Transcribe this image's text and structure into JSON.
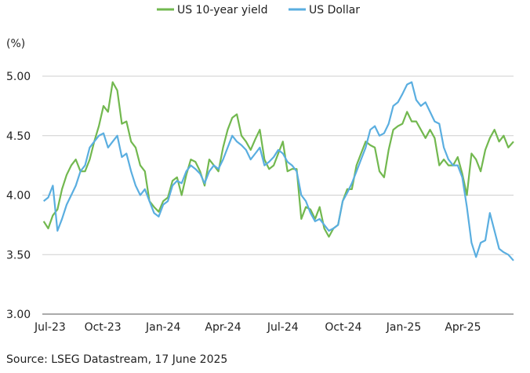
{
  "chart_data": {
    "type": "line",
    "ylabel": "(%)",
    "ylim": [
      3.0,
      5.0
    ],
    "yticks": [
      3.0,
      3.5,
      4.0,
      4.5,
      5.0
    ],
    "ytick_labels": [
      "3.00",
      "3.50",
      "4.00",
      "4.50",
      "5.00"
    ],
    "xlim": [
      "2023-07-01",
      "2025-06-17"
    ],
    "xticks": [
      "2023-07-01",
      "2023-10-01",
      "2024-01-01",
      "2024-04-01",
      "2024-07-01",
      "2024-10-01",
      "2025-01-01",
      "2025-04-01"
    ],
    "xtick_labels": [
      "Jul-23",
      "Oct-23",
      "Jan-24",
      "Apr-24",
      "Jul-24",
      "Oct-24",
      "Jan-25",
      "Apr-25"
    ],
    "grid": true,
    "legend_position": "top-center",
    "series": [
      {
        "name": "US 10-year yield",
        "color": "#72b84f",
        "points": [
          [
            "2023-07-03",
            3.78
          ],
          [
            "2023-07-10",
            3.72
          ],
          [
            "2023-07-17",
            3.83
          ],
          [
            "2023-07-24",
            3.88
          ],
          [
            "2023-07-31",
            4.05
          ],
          [
            "2023-08-07",
            4.17
          ],
          [
            "2023-08-14",
            4.25
          ],
          [
            "2023-08-21",
            4.3
          ],
          [
            "2023-08-28",
            4.2
          ],
          [
            "2023-09-04",
            4.2
          ],
          [
            "2023-09-11",
            4.3
          ],
          [
            "2023-09-18",
            4.45
          ],
          [
            "2023-09-25",
            4.58
          ],
          [
            "2023-10-02",
            4.75
          ],
          [
            "2023-10-09",
            4.7
          ],
          [
            "2023-10-16",
            4.95
          ],
          [
            "2023-10-23",
            4.88
          ],
          [
            "2023-10-30",
            4.6
          ],
          [
            "2023-11-06",
            4.62
          ],
          [
            "2023-11-13",
            4.45
          ],
          [
            "2023-11-20",
            4.4
          ],
          [
            "2023-11-27",
            4.25
          ],
          [
            "2023-12-04",
            4.2
          ],
          [
            "2023-12-11",
            3.95
          ],
          [
            "2023-12-18",
            3.9
          ],
          [
            "2023-12-25",
            3.86
          ],
          [
            "2024-01-01",
            3.95
          ],
          [
            "2024-01-08",
            3.98
          ],
          [
            "2024-01-15",
            4.12
          ],
          [
            "2024-01-22",
            4.15
          ],
          [
            "2024-01-29",
            4.0
          ],
          [
            "2024-02-05",
            4.17
          ],
          [
            "2024-02-12",
            4.3
          ],
          [
            "2024-02-19",
            4.28
          ],
          [
            "2024-02-26",
            4.2
          ],
          [
            "2024-03-04",
            4.08
          ],
          [
            "2024-03-11",
            4.3
          ],
          [
            "2024-03-18",
            4.25
          ],
          [
            "2024-03-25",
            4.2
          ],
          [
            "2024-04-01",
            4.4
          ],
          [
            "2024-04-08",
            4.55
          ],
          [
            "2024-04-15",
            4.65
          ],
          [
            "2024-04-22",
            4.68
          ],
          [
            "2024-04-29",
            4.5
          ],
          [
            "2024-05-06",
            4.45
          ],
          [
            "2024-05-13",
            4.38
          ],
          [
            "2024-05-20",
            4.47
          ],
          [
            "2024-05-27",
            4.55
          ],
          [
            "2024-06-03",
            4.3
          ],
          [
            "2024-06-10",
            4.22
          ],
          [
            "2024-06-17",
            4.25
          ],
          [
            "2024-06-24",
            4.35
          ],
          [
            "2024-07-01",
            4.45
          ],
          [
            "2024-07-08",
            4.2
          ],
          [
            "2024-07-15",
            4.22
          ],
          [
            "2024-07-22",
            4.22
          ],
          [
            "2024-07-29",
            3.8
          ],
          [
            "2024-08-05",
            3.9
          ],
          [
            "2024-08-12",
            3.88
          ],
          [
            "2024-08-19",
            3.8
          ],
          [
            "2024-08-26",
            3.9
          ],
          [
            "2024-09-02",
            3.72
          ],
          [
            "2024-09-09",
            3.65
          ],
          [
            "2024-09-16",
            3.72
          ],
          [
            "2024-09-23",
            3.75
          ],
          [
            "2024-09-30",
            3.95
          ],
          [
            "2024-10-07",
            4.05
          ],
          [
            "2024-10-14",
            4.05
          ],
          [
            "2024-10-21",
            4.25
          ],
          [
            "2024-10-28",
            4.35
          ],
          [
            "2024-11-04",
            4.45
          ],
          [
            "2024-11-11",
            4.42
          ],
          [
            "2024-11-18",
            4.4
          ],
          [
            "2024-11-25",
            4.2
          ],
          [
            "2024-12-02",
            4.15
          ],
          [
            "2024-12-09",
            4.38
          ],
          [
            "2024-12-16",
            4.55
          ],
          [
            "2024-12-23",
            4.58
          ],
          [
            "2024-12-30",
            4.6
          ],
          [
            "2025-01-06",
            4.7
          ],
          [
            "2025-01-13",
            4.62
          ],
          [
            "2025-01-20",
            4.62
          ],
          [
            "2025-01-27",
            4.55
          ],
          [
            "2025-02-03",
            4.48
          ],
          [
            "2025-02-10",
            4.55
          ],
          [
            "2025-02-17",
            4.48
          ],
          [
            "2025-02-24",
            4.25
          ],
          [
            "2025-03-03",
            4.3
          ],
          [
            "2025-03-10",
            4.25
          ],
          [
            "2025-03-17",
            4.25
          ],
          [
            "2025-03-24",
            4.32
          ],
          [
            "2025-03-31",
            4.18
          ],
          [
            "2025-04-07",
            4.0
          ],
          [
            "2025-04-14",
            4.35
          ],
          [
            "2025-04-21",
            4.3
          ],
          [
            "2025-04-28",
            4.2
          ],
          [
            "2025-05-05",
            4.38
          ],
          [
            "2025-05-12",
            4.48
          ],
          [
            "2025-05-19",
            4.55
          ],
          [
            "2025-05-26",
            4.45
          ],
          [
            "2025-06-02",
            4.5
          ],
          [
            "2025-06-09",
            4.4
          ],
          [
            "2025-06-17",
            4.45
          ]
        ]
      },
      {
        "name": "US Dollar",
        "color": "#5aaee0",
        "points": [
          [
            "2023-07-03",
            3.95
          ],
          [
            "2023-07-10",
            3.98
          ],
          [
            "2023-07-17",
            4.08
          ],
          [
            "2023-07-24",
            3.7
          ],
          [
            "2023-07-31",
            3.8
          ],
          [
            "2023-08-07",
            3.92
          ],
          [
            "2023-08-14",
            4.0
          ],
          [
            "2023-08-21",
            4.08
          ],
          [
            "2023-08-28",
            4.2
          ],
          [
            "2023-09-04",
            4.25
          ],
          [
            "2023-09-11",
            4.4
          ],
          [
            "2023-09-18",
            4.45
          ],
          [
            "2023-09-25",
            4.5
          ],
          [
            "2023-10-02",
            4.52
          ],
          [
            "2023-10-09",
            4.4
          ],
          [
            "2023-10-16",
            4.45
          ],
          [
            "2023-10-23",
            4.5
          ],
          [
            "2023-10-30",
            4.32
          ],
          [
            "2023-11-06",
            4.35
          ],
          [
            "2023-11-13",
            4.2
          ],
          [
            "2023-11-20",
            4.08
          ],
          [
            "2023-11-27",
            4.0
          ],
          [
            "2023-12-04",
            4.05
          ],
          [
            "2023-12-11",
            3.95
          ],
          [
            "2023-12-18",
            3.85
          ],
          [
            "2023-12-25",
            3.82
          ],
          [
            "2024-01-01",
            3.92
          ],
          [
            "2024-01-08",
            3.95
          ],
          [
            "2024-01-15",
            4.08
          ],
          [
            "2024-01-22",
            4.12
          ],
          [
            "2024-01-29",
            4.1
          ],
          [
            "2024-02-05",
            4.2
          ],
          [
            "2024-02-12",
            4.25
          ],
          [
            "2024-02-19",
            4.22
          ],
          [
            "2024-02-26",
            4.18
          ],
          [
            "2024-03-04",
            4.1
          ],
          [
            "2024-03-11",
            4.2
          ],
          [
            "2024-03-18",
            4.25
          ],
          [
            "2024-03-25",
            4.22
          ],
          [
            "2024-04-01",
            4.3
          ],
          [
            "2024-04-08",
            4.4
          ],
          [
            "2024-04-15",
            4.5
          ],
          [
            "2024-04-22",
            4.45
          ],
          [
            "2024-04-29",
            4.42
          ],
          [
            "2024-05-06",
            4.38
          ],
          [
            "2024-05-13",
            4.3
          ],
          [
            "2024-05-20",
            4.35
          ],
          [
            "2024-05-27",
            4.4
          ],
          [
            "2024-06-03",
            4.25
          ],
          [
            "2024-06-10",
            4.28
          ],
          [
            "2024-06-17",
            4.32
          ],
          [
            "2024-06-24",
            4.38
          ],
          [
            "2024-07-01",
            4.35
          ],
          [
            "2024-07-08",
            4.28
          ],
          [
            "2024-07-15",
            4.25
          ],
          [
            "2024-07-22",
            4.2
          ],
          [
            "2024-07-29",
            4.0
          ],
          [
            "2024-08-05",
            3.95
          ],
          [
            "2024-08-12",
            3.85
          ],
          [
            "2024-08-19",
            3.78
          ],
          [
            "2024-08-26",
            3.8
          ],
          [
            "2024-09-02",
            3.75
          ],
          [
            "2024-09-09",
            3.7
          ],
          [
            "2024-09-16",
            3.72
          ],
          [
            "2024-09-23",
            3.75
          ],
          [
            "2024-09-30",
            3.95
          ],
          [
            "2024-10-07",
            4.02
          ],
          [
            "2024-10-14",
            4.1
          ],
          [
            "2024-10-21",
            4.2
          ],
          [
            "2024-10-28",
            4.3
          ],
          [
            "2024-11-04",
            4.4
          ],
          [
            "2024-11-11",
            4.55
          ],
          [
            "2024-11-18",
            4.58
          ],
          [
            "2024-11-25",
            4.5
          ],
          [
            "2024-12-02",
            4.52
          ],
          [
            "2024-12-09",
            4.6
          ],
          [
            "2024-12-16",
            4.75
          ],
          [
            "2024-12-23",
            4.78
          ],
          [
            "2024-12-30",
            4.85
          ],
          [
            "2025-01-06",
            4.93
          ],
          [
            "2025-01-13",
            4.95
          ],
          [
            "2025-01-20",
            4.8
          ],
          [
            "2025-01-27",
            4.75
          ],
          [
            "2025-02-03",
            4.78
          ],
          [
            "2025-02-10",
            4.7
          ],
          [
            "2025-02-17",
            4.62
          ],
          [
            "2025-02-24",
            4.6
          ],
          [
            "2025-03-03",
            4.4
          ],
          [
            "2025-03-10",
            4.3
          ],
          [
            "2025-03-17",
            4.25
          ],
          [
            "2025-03-24",
            4.25
          ],
          [
            "2025-03-31",
            4.15
          ],
          [
            "2025-04-07",
            3.9
          ],
          [
            "2025-04-14",
            3.6
          ],
          [
            "2025-04-21",
            3.48
          ],
          [
            "2025-04-28",
            3.6
          ],
          [
            "2025-05-05",
            3.62
          ],
          [
            "2025-05-12",
            3.85
          ],
          [
            "2025-05-19",
            3.7
          ],
          [
            "2025-05-26",
            3.55
          ],
          [
            "2025-06-02",
            3.52
          ],
          [
            "2025-06-09",
            3.5
          ],
          [
            "2025-06-17",
            3.45
          ]
        ]
      }
    ]
  },
  "source": "Source: LSEG Datastream, 17 June 2025"
}
